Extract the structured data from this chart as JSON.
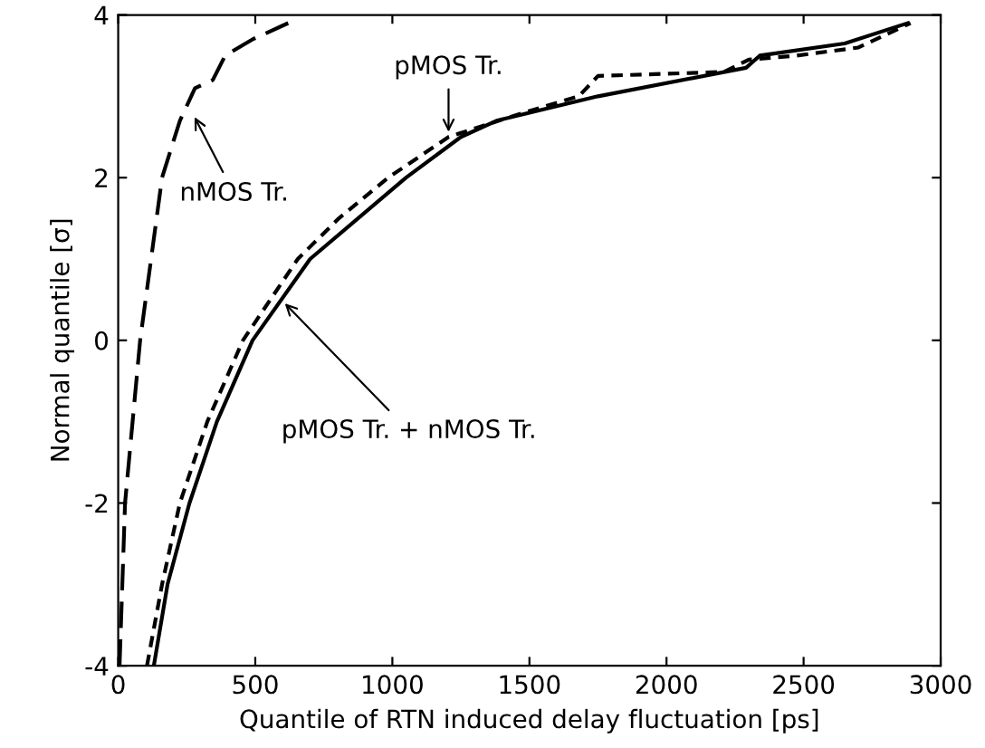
{
  "chart_data": {
    "type": "line",
    "xlabel": "Quantile of RTN induced delay fluctuation [ps]",
    "ylabel": "Normal quantile [σ]",
    "series": [
      {
        "color": "#000000",
        "line_style": "dashed",
        "x": [
          5,
          25,
          80,
          160,
          225,
          280,
          345,
          390,
          490,
          620
        ],
        "values": [
          -4,
          -2,
          0,
          2,
          2.7,
          3.1,
          3.2,
          3.5,
          3.7,
          3.9
        ]
      },
      {
        "color": "#000000",
        "line_style": "dotted",
        "x": [
          105,
          160,
          225,
          325,
          455,
          655,
          805,
          985,
          1205,
          1480,
          1680,
          1750,
          2210,
          2300,
          2475,
          2700,
          2890
        ],
        "values": [
          -4,
          -3,
          -2,
          -1,
          0,
          1,
          1.5,
          2,
          2.5,
          2.8,
          3.0,
          3.25,
          3.3,
          3.45,
          3.5,
          3.6,
          3.9
        ]
      },
      {
        "color": "#000000",
        "line_style": "solid",
        "x": [
          130,
          180,
          260,
          360,
          490,
          700,
          1050,
          1250,
          1380,
          1750,
          2290,
          2340,
          2650,
          2880
        ],
        "values": [
          -4,
          -3,
          -2,
          -1,
          0,
          1,
          2,
          2.5,
          2.7,
          3.0,
          3.35,
          3.5,
          3.65,
          3.9
        ]
      }
    ],
    "annotations": [
      {
        "text": "nMOS Tr.",
        "x": 270,
        "y": 2.8
      },
      {
        "text": "pMOS Tr.",
        "x": 1205,
        "y": 2.5
      },
      {
        "text": "pMOS Tr. + nMOS Tr.",
        "x": 595,
        "y": 0.5
      }
    ],
    "xlim": [
      0,
      3000
    ],
    "xticks": [
      0,
      500,
      1000,
      1500,
      2000,
      2500,
      3000
    ],
    "ylim": [
      -4,
      4
    ],
    "yticks": [
      -4,
      -2,
      0,
      2,
      4
    ],
    "grid": false,
    "legend": false
  }
}
